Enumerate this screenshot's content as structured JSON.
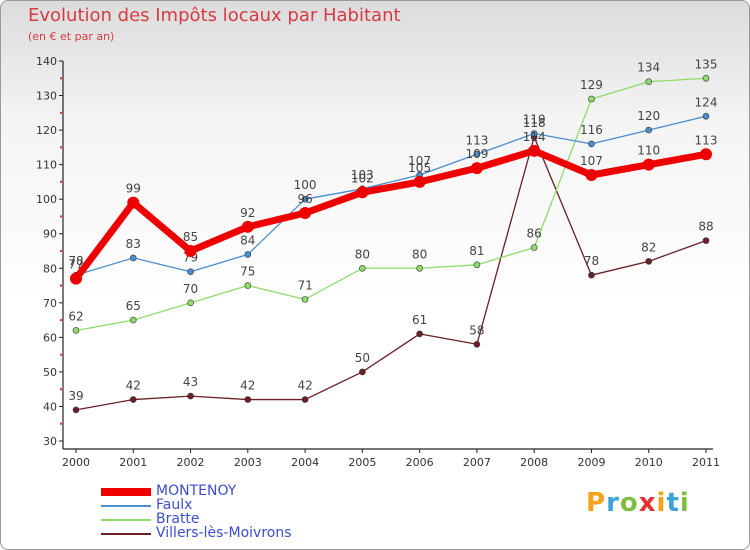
{
  "chart_data": {
    "type": "line",
    "title": "Evolution des Impôts locaux par Habitant",
    "subtitle": "(en € et par an)",
    "xlabel": "",
    "ylabel": "",
    "categories": [
      "2000",
      "2001",
      "2002",
      "2003",
      "2004",
      "2005",
      "2006",
      "2007",
      "2008",
      "2009",
      "2010",
      "2011"
    ],
    "ylim": [
      30,
      140
    ],
    "yticks": [
      30,
      40,
      50,
      60,
      70,
      80,
      90,
      100,
      110,
      120,
      130,
      140
    ],
    "grid": false,
    "legend_position": "bottom-left",
    "series": [
      {
        "name": "Villers-lès-Moivrons",
        "color": "#6b1f26",
        "values": [
          39,
          42,
          43,
          42,
          42,
          50,
          61,
          58,
          118,
          78,
          82,
          88
        ]
      },
      {
        "name": "Bratte",
        "color": "#8fdc6a",
        "values": [
          62,
          65,
          70,
          75,
          71,
          80,
          80,
          81,
          86,
          129,
          134,
          135
        ]
      },
      {
        "name": "Faulx",
        "color": "#4a8ecf",
        "values": [
          78,
          83,
          79,
          84,
          100,
          103,
          107,
          113,
          119,
          116,
          120,
          124
        ]
      },
      {
        "name": "MONTENOY",
        "color": "#ee0000",
        "values": [
          77,
          99,
          85,
          92,
          96,
          102,
          105,
          109,
          114,
          107,
          110,
          113
        ]
      }
    ]
  },
  "logo": {
    "letters": [
      "P",
      "r",
      "o",
      "x",
      "i",
      "t",
      "i"
    ],
    "colors": [
      "#f7a21b",
      "#3aa3d9",
      "#7dbf3f",
      "#e6312f",
      "#f7a21b",
      "#3aa3d9",
      "#7dbf3f"
    ]
  }
}
